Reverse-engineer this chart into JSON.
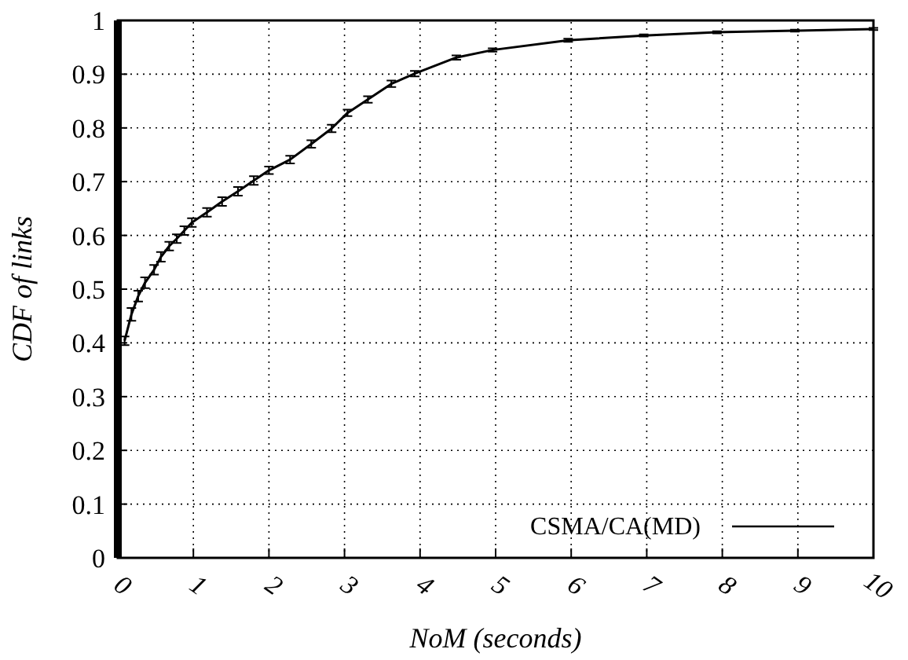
{
  "chart_data": {
    "type": "line",
    "xlabel": "NoM (seconds)",
    "ylabel": "CDF of links",
    "xlim": [
      0,
      10
    ],
    "ylim": [
      0,
      1
    ],
    "xticks": [
      0,
      1,
      2,
      3,
      4,
      5,
      6,
      7,
      8,
      9,
      10
    ],
    "yticks": [
      0,
      0.1,
      0.2,
      0.3,
      0.4,
      0.5,
      0.6,
      0.7,
      0.8,
      0.9,
      1
    ],
    "grid": true,
    "legend": "bottom right",
    "line_style": "solid",
    "series": [
      {
        "name": "CSMA/CA(MD)",
        "color": "#000000",
        "x": [
          0.09,
          0.18,
          0.27,
          0.36,
          0.48,
          0.57,
          0.68,
          0.78,
          0.88,
          0.98,
          1.18,
          1.38,
          1.59,
          1.8,
          2.0,
          2.28,
          2.56,
          2.83,
          3.04,
          3.31,
          3.62,
          3.93,
          4.48,
          4.96,
          5.96,
          6.96,
          7.93,
          8.96,
          10
        ],
        "values": [
          0.404,
          0.453,
          0.487,
          0.512,
          0.536,
          0.56,
          0.58,
          0.594,
          0.609,
          0.624,
          0.643,
          0.663,
          0.682,
          0.702,
          0.721,
          0.741,
          0.77,
          0.799,
          0.828,
          0.853,
          0.882,
          0.901,
          0.931,
          0.945,
          0.963,
          0.972,
          0.978,
          0.981,
          0.984
        ],
        "errors": [
          0.008,
          0.012,
          0.01,
          0.01,
          0.009,
          0.009,
          0.008,
          0.008,
          0.008,
          0.008,
          0.008,
          0.008,
          0.008,
          0.008,
          0.007,
          0.007,
          0.007,
          0.007,
          0.006,
          0.006,
          0.006,
          0.005,
          0.004,
          0.003,
          0.003,
          0.002,
          0.002,
          0.002,
          0.002
        ]
      }
    ]
  }
}
